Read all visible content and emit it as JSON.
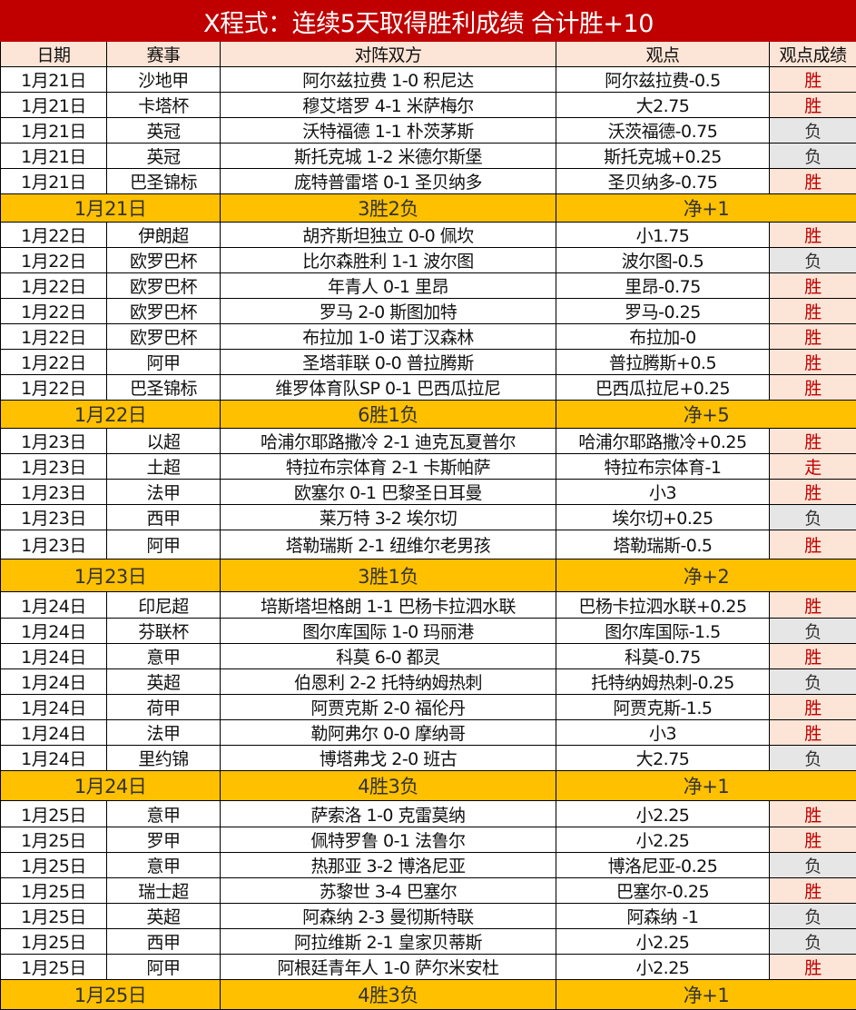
{
  "title": "X程式：连续5天取得胜利成绩 合计胜+10",
  "headers": [
    "日期",
    "赛事",
    "对阵双方",
    "观点",
    "观点成绩"
  ],
  "colors": {
    "title_bg": "#c00000",
    "header_bg": "#fce4d6",
    "win_bg": "#fce4d6",
    "win_text": "#c00000",
    "loss_bg": "#e7e6e6",
    "summary_bg": "#ffc000"
  },
  "days": [
    {
      "rows": [
        [
          "1月21日",
          "沙地甲",
          "阿尔兹拉费 1-0 积尼达",
          "阿尔兹拉费-0.5",
          "胜"
        ],
        [
          "1月21日",
          "卡塔杯",
          "穆艾塔罗 4-1 米萨梅尔",
          "大2.75",
          "胜"
        ],
        [
          "1月21日",
          "英冠",
          "沃特福德 1-1 朴茨茅斯",
          "沃茨福德-0.75",
          "负"
        ],
        [
          "1月21日",
          "英冠",
          "斯托克城 1-2 米德尔斯堡",
          "斯托克城+0.25",
          "负"
        ],
        [
          "1月21日",
          "巴圣锦标",
          "庞特普雷塔 0-1 圣贝纳多",
          "圣贝纳多-0.75",
          "胜"
        ]
      ],
      "summary": {
        "date": "1月21日",
        "record": "3胜2负",
        "net": "净+1"
      }
    },
    {
      "rows": [
        [
          "1月22日",
          "伊朗超",
          "胡齐斯坦独立 0-0 佩坎",
          "小1.75",
          "胜"
        ],
        [
          "1月22日",
          "欧罗巴杯",
          "比尔森胜利 1-1 波尔图",
          "波尔图-0.5",
          "负"
        ],
        [
          "1月22日",
          "欧罗巴杯",
          "年青人 0-1 里昂",
          "里昂-0.75",
          "胜"
        ],
        [
          "1月22日",
          "欧罗巴杯",
          "罗马 2-0 斯图加特",
          "罗马-0.25",
          "胜"
        ],
        [
          "1月22日",
          "欧罗巴杯",
          "布拉加 1-0 诺丁汉森林",
          "布拉加-0",
          "胜"
        ],
        [
          "1月22日",
          "阿甲",
          "圣塔菲联 0-0 普拉腾斯",
          "普拉腾斯+0.5",
          "胜"
        ],
        [
          "1月22日",
          "巴圣锦标",
          "维罗体育队SP 0-1 巴西瓜拉尼",
          "巴西瓜拉尼+0.25",
          "胜"
        ]
      ],
      "summary": {
        "date": "1月22日",
        "record": "6胜1负",
        "net": "净+5"
      }
    },
    {
      "rows": [
        [
          "1月23日",
          "以超",
          "哈浦尔耶路撒冷 2-1 迪克瓦夏普尔",
          "哈浦尔耶路撒冷+0.25",
          "胜"
        ],
        [
          "1月23日",
          "土超",
          "特拉布宗体育 2-1 卡斯帕萨",
          "特拉布宗体育-1",
          "走"
        ],
        [
          "1月23日",
          "法甲",
          "欧塞尔 0-1 巴黎圣日耳曼",
          "小3",
          "胜"
        ],
        [
          "1月23日",
          "西甲",
          "莱万特 3-2 埃尔切",
          "埃尔切+0.25",
          "负"
        ],
        [
          "1月23日",
          "阿甲",
          "塔勒瑞斯 2-1 纽维尔老男孩",
          "塔勒瑞斯-0.5",
          "胜"
        ]
      ],
      "summary": {
        "date": "1月23日",
        "record": "3胜1负",
        "net": "净+2"
      }
    },
    {
      "rows": [
        [
          "1月24日",
          "印尼超",
          "培斯塔坦格朗 1-1 巴杨卡拉泗水联",
          "巴杨卡拉泗水联+0.25",
          "胜"
        ],
        [
          "1月24日",
          "芬联杯",
          "图尔库国际 1-0 玛丽港",
          "图尔库国际-1.5",
          "负"
        ],
        [
          "1月24日",
          "意甲",
          "科莫 6-0 都灵",
          "科莫-0.75",
          "胜"
        ],
        [
          "1月24日",
          "英超",
          "伯恩利 2-2 托特纳姆热刺",
          "托特纳姆热刺-0.25",
          "负"
        ],
        [
          "1月24日",
          "荷甲",
          "阿贾克斯 2-0 福伦丹",
          "阿贾克斯-1.5",
          "胜"
        ],
        [
          "1月24日",
          "法甲",
          "勒阿弗尔 0-0 摩纳哥",
          "小3",
          "胜"
        ],
        [
          "1月24日",
          "里约锦",
          "博塔弗戈 2-0 班古",
          "大2.75",
          "负"
        ]
      ],
      "summary": {
        "date": "1月24日",
        "record": "4胜3负",
        "net": "净+1"
      }
    },
    {
      "rows": [
        [
          "1月25日",
          "意甲",
          "萨索洛 1-0 克雷莫纳",
          "小2.25",
          "胜"
        ],
        [
          "1月25日",
          "罗甲",
          "佩特罗鲁 0-1 法鲁尔",
          "小2.25",
          "胜"
        ],
        [
          "1月25日",
          "意甲",
          "热那亚 3-2 博洛尼亚",
          "博洛尼亚-0.25",
          "负"
        ],
        [
          "1月25日",
          "瑞士超",
          "苏黎世 3-4 巴塞尔",
          "巴塞尔-0.25",
          "胜"
        ],
        [
          "1月25日",
          "英超",
          "阿森纳 2-3 曼彻斯特联",
          "阿森纳 -1",
          "负"
        ],
        [
          "1月25日",
          "西甲",
          "阿拉维斯 2-1 皇家贝蒂斯",
          "小2.25",
          "负"
        ],
        [
          "1月25日",
          "阿甲",
          "阿根廷青年人 1-0 萨尔米安杜",
          "小2.25",
          "胜"
        ]
      ],
      "summary": {
        "date": "1月25日",
        "record": "4胜3负",
        "net": "净+1"
      }
    }
  ]
}
